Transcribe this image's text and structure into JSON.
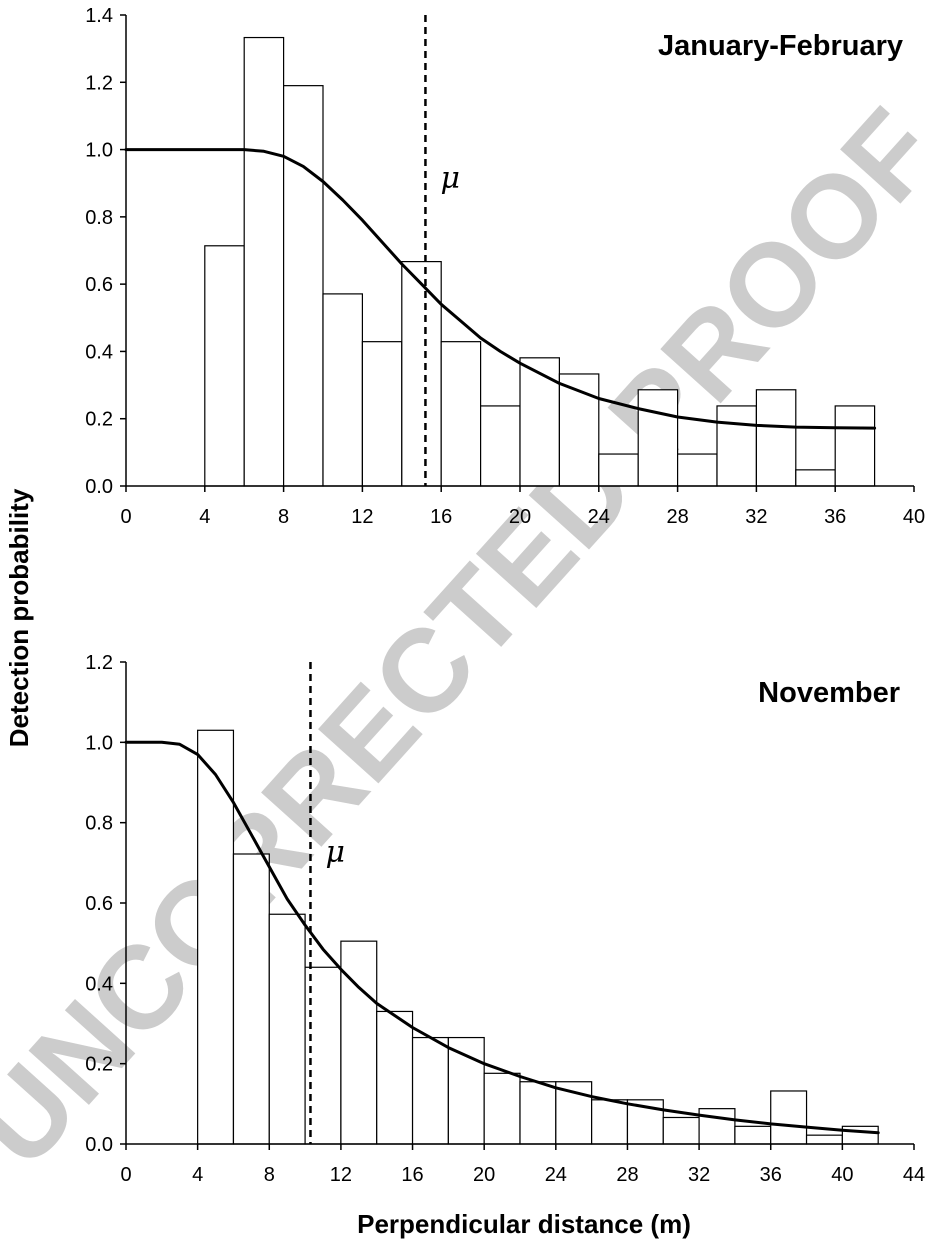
{
  "watermark": "UNCORRECTED PROOF",
  "axis_labels": {
    "ylabel": "Detection probability",
    "xlabel": "Perpendicular distance (m)"
  },
  "chart_data": [
    {
      "type": "bar",
      "title": "January-February",
      "xlabel": "Perpendicular distance (m)",
      "ylabel": "Detection probability",
      "xlim": [
        0,
        40
      ],
      "ylim": [
        0,
        1.4
      ],
      "xticks": [
        0,
        4,
        8,
        12,
        16,
        20,
        24,
        28,
        32,
        36,
        40
      ],
      "yticks": [
        0,
        0.2,
        0.4,
        0.6,
        0.8,
        1.0,
        1.2,
        1.4
      ],
      "ytick_labels": [
        "0.0",
        "0.2",
        "0.4",
        "0.6",
        "0.8",
        "1.0",
        "1.2",
        "1.4"
      ],
      "bin_edges": [
        4,
        6,
        8,
        10,
        12,
        14,
        16,
        18,
        20,
        22,
        24,
        26,
        28,
        30,
        32,
        34,
        36,
        38
      ],
      "values": [
        0.714,
        1.333,
        1.19,
        0.571,
        0.429,
        0.667,
        0.429,
        0.238,
        0.381,
        0.333,
        0.095,
        0.286,
        0.095,
        0.238,
        0.286,
        0.048,
        0.238
      ],
      "fitted_curve": {
        "x": [
          0,
          2,
          4,
          6,
          7,
          8,
          9,
          10,
          11,
          12,
          13,
          14,
          15,
          16,
          17,
          18,
          19,
          20,
          22,
          24,
          26,
          28,
          30,
          32,
          34,
          36,
          38
        ],
        "y": [
          1.0,
          1.0,
          1.0,
          1.0,
          0.995,
          0.98,
          0.95,
          0.905,
          0.85,
          0.79,
          0.725,
          0.66,
          0.6,
          0.54,
          0.49,
          0.44,
          0.4,
          0.365,
          0.305,
          0.26,
          0.23,
          0.205,
          0.19,
          0.18,
          0.175,
          0.173,
          0.172
        ]
      },
      "mu": {
        "label": "μ",
        "x": 15.2
      }
    },
    {
      "type": "bar",
      "title": "November",
      "xlabel": "Perpendicular distance (m)",
      "ylabel": "Detection probability",
      "xlim": [
        0,
        44
      ],
      "ylim": [
        0,
        1.2
      ],
      "xticks": [
        0,
        4,
        8,
        12,
        16,
        20,
        24,
        28,
        32,
        36,
        40,
        44
      ],
      "yticks": [
        0,
        0.2,
        0.4,
        0.6,
        0.8,
        1.0,
        1.2
      ],
      "ytick_labels": [
        "0.0",
        "0.2",
        "0.4",
        "0.6",
        "0.8",
        "1.0",
        "1.2"
      ],
      "bin_edges": [
        4,
        6,
        8,
        10,
        12,
        14,
        16,
        18,
        20,
        22,
        24,
        26,
        28,
        30,
        32,
        34,
        36,
        38,
        40,
        42
      ],
      "values": [
        1.03,
        0.722,
        0.572,
        0.44,
        0.505,
        0.33,
        0.265,
        0.265,
        0.176,
        0.155,
        0.155,
        0.11,
        0.11,
        0.066,
        0.088,
        0.044,
        0.132,
        0.022,
        0.044
      ],
      "fitted_curve": {
        "x": [
          0,
          1,
          2,
          3,
          4,
          5,
          6,
          7,
          8,
          9,
          10,
          11,
          12,
          13,
          14,
          16,
          18,
          20,
          22,
          24,
          26,
          28,
          30,
          32,
          34,
          36,
          38,
          40,
          42
        ],
        "y": [
          1.0,
          1.0,
          1.0,
          0.995,
          0.97,
          0.92,
          0.85,
          0.77,
          0.69,
          0.61,
          0.545,
          0.485,
          0.435,
          0.39,
          0.35,
          0.29,
          0.24,
          0.2,
          0.168,
          0.14,
          0.118,
          0.1,
          0.085,
          0.072,
          0.06,
          0.05,
          0.042,
          0.034,
          0.028
        ]
      },
      "mu": {
        "label": "μ",
        "x": 10.3
      }
    }
  ]
}
